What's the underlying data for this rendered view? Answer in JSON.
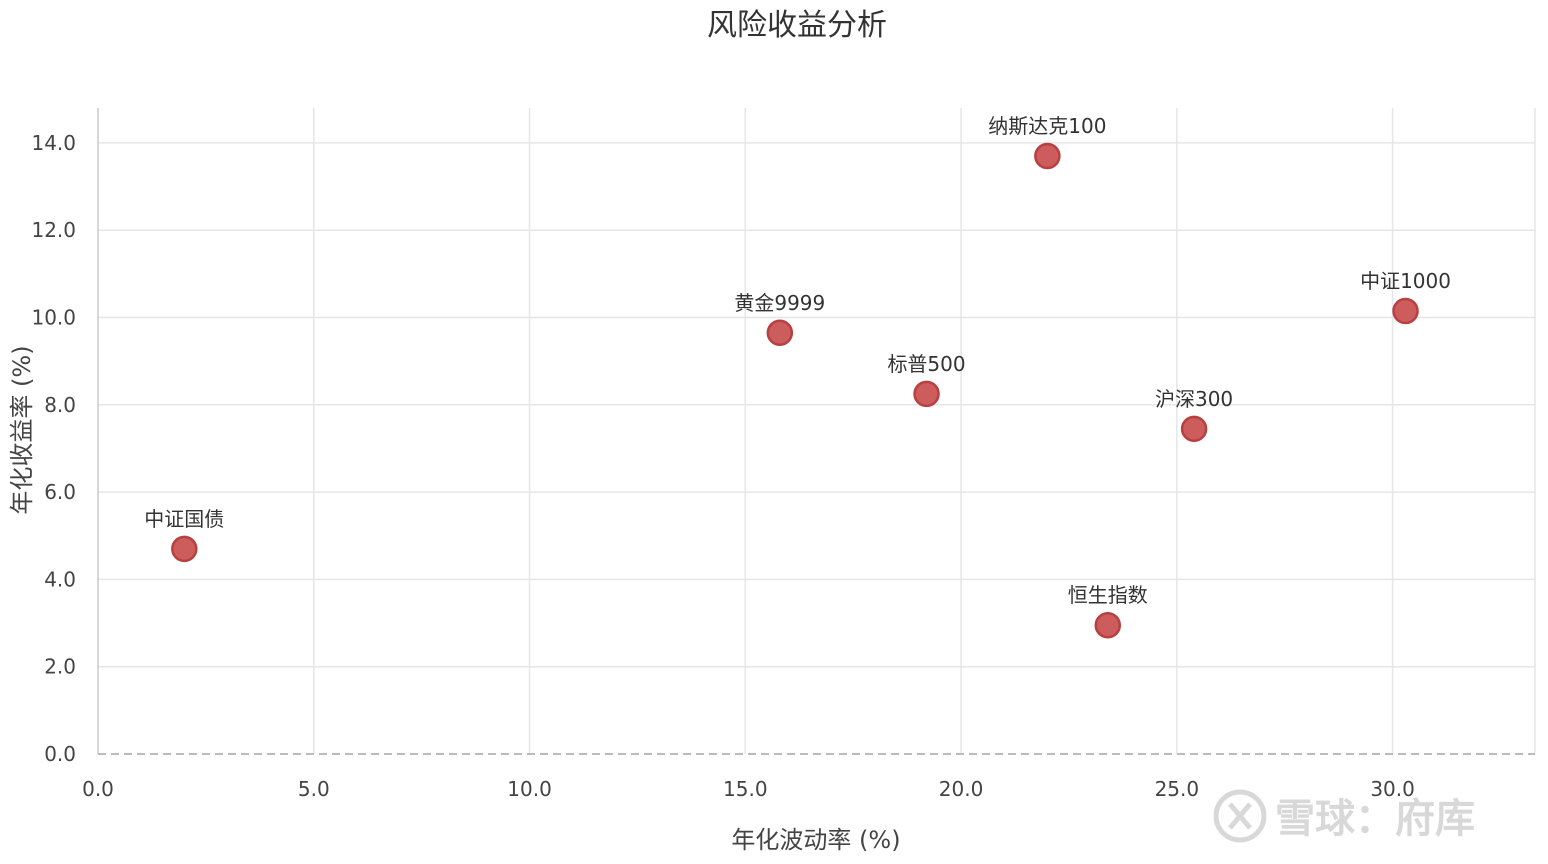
{
  "chart_data": {
    "type": "scatter",
    "title": "风险收益分析",
    "xlabel": "年化波动率 (%)",
    "ylabel": "年化收益率 (%)",
    "xlim": [
      0,
      33.3
    ],
    "ylim": [
      0,
      14.8
    ],
    "xticks": [
      0,
      5,
      10,
      15,
      20,
      25,
      30
    ],
    "yticks": [
      0,
      2,
      4,
      6,
      8,
      10,
      12,
      14
    ],
    "grid": true,
    "points": [
      {
        "label": "中证国债",
        "x": 2.0,
        "y": 4.7
      },
      {
        "label": "黄金9999",
        "x": 15.8,
        "y": 9.65
      },
      {
        "label": "标普500",
        "x": 19.2,
        "y": 8.25
      },
      {
        "label": "纳斯达克100",
        "x": 22.0,
        "y": 13.7
      },
      {
        "label": "恒生指数",
        "x": 23.4,
        "y": 2.95
      },
      {
        "label": "沪深300",
        "x": 25.4,
        "y": 7.45
      },
      {
        "label": "中证1000",
        "x": 30.3,
        "y": 10.15
      }
    ],
    "point_color": "#cd5c5c"
  },
  "watermark": {
    "text": "雪球：府库",
    "icon": "xueqiu-logo-icon"
  }
}
